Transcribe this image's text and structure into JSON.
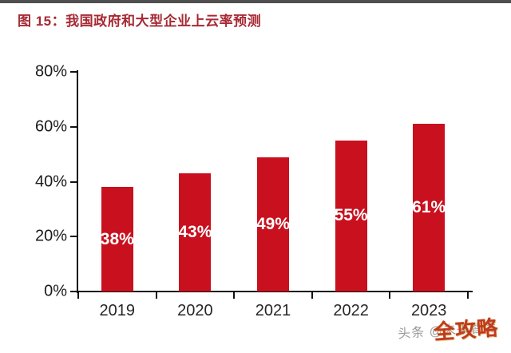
{
  "header": {
    "title": "图 15：我国政府和大型企业上云率预测"
  },
  "chart_data": {
    "type": "bar",
    "title": "我国政府和大型企业上云率预测",
    "categories": [
      "2019",
      "2020",
      "2021",
      "2022",
      "2023"
    ],
    "values": [
      38,
      43,
      49,
      55,
      61
    ],
    "value_labels": [
      "38%",
      "43%",
      "49%",
      "55%",
      "61%"
    ],
    "xlabel": "",
    "ylabel": "",
    "ylim": [
      0,
      80
    ],
    "yticks": [
      0,
      20,
      40,
      60,
      80
    ],
    "ytick_labels": [
      "0%",
      "20%",
      "40%",
      "60%",
      "80%"
    ],
    "grid": false,
    "legend_position": "none",
    "bar_color": "#c8101e"
  },
  "watermark": {
    "byline": "头条 @未来智库",
    "stamp": "全攻略"
  },
  "colors": {
    "title_red": "#a62933",
    "bar_red": "#c8101e",
    "top_rule_gray": "#4f4f4f",
    "axis_black": "#111111",
    "watermark_gray": "#8a8a8a",
    "stamp_red": "#bf3a20",
    "bar_label_white": "#ffffff"
  }
}
